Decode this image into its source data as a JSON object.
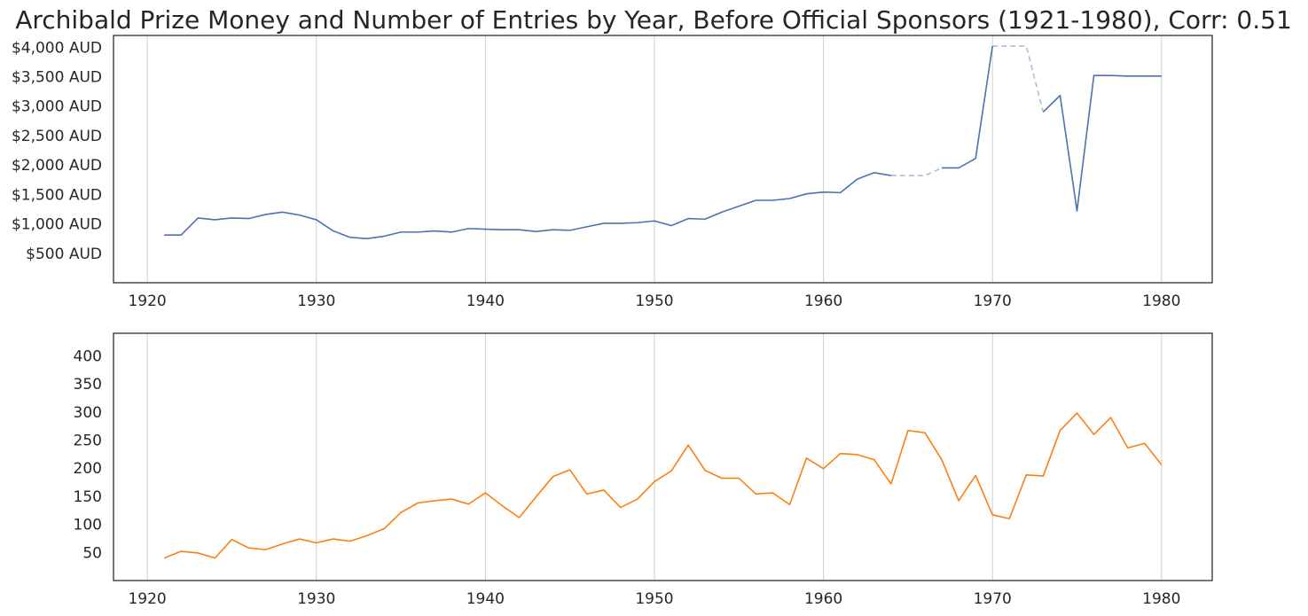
{
  "chart_data": {
    "title": "Archibald Prize Money and Number of Entries by Year,   Before Official Sponsors (1921-1980), Corr: 0.51",
    "panels": [
      {
        "type": "line",
        "xlabel": "",
        "ylabel": "",
        "xlim": [
          1918,
          1983
        ],
        "ylim": [
          0,
          4200
        ],
        "x_ticks": [
          1920,
          1930,
          1940,
          1950,
          1960,
          1970,
          1980
        ],
        "x_tick_labels": [
          "1920",
          "1930",
          "1940",
          "1950",
          "1960",
          "1970",
          "1980"
        ],
        "y_ticks": [
          500,
          1000,
          1500,
          2000,
          2500,
          3000,
          3500,
          4000
        ],
        "y_tick_labels": [
          "$500 AUD",
          "$1,000 AUD",
          "$1,500 AUD",
          "$2,000 AUD",
          "$2,500 AUD",
          "$3,000 AUD",
          "$3,500 AUD",
          "$4,000 AUD"
        ],
        "grid": "vertical",
        "series": [
          {
            "color": "#4c72b0",
            "gap_fill_color": "#a6bfdd",
            "x": [
              1921,
              1922,
              1923,
              1924,
              1925,
              1926,
              1927,
              1928,
              1929,
              1930,
              1931,
              1932,
              1933,
              1934,
              1935,
              1936,
              1937,
              1938,
              1939,
              1940,
              1941,
              1942,
              1943,
              1944,
              1945,
              1946,
              1947,
              1948,
              1949,
              1950,
              1951,
              1952,
              1953,
              1954,
              1955,
              1956,
              1957,
              1958,
              1959,
              1960,
              1961,
              1962,
              1963,
              1964,
              1965,
              1966,
              1967,
              1968,
              1969,
              1970,
              1971,
              1972,
              1973,
              1974,
              1975,
              1976,
              1977,
              1978,
              1979,
              1980
            ],
            "values": [
              810,
              810,
              1100,
              1070,
              1100,
              1090,
              1160,
              1200,
              1150,
              1070,
              880,
              770,
              750,
              790,
              860,
              860,
              880,
              860,
              920,
              910,
              900,
              900,
              870,
              900,
              890,
              950,
              1010,
              1010,
              1020,
              1050,
              970,
              1090,
              1080,
              1200,
              1300,
              1400,
              1400,
              1430,
              1510,
              1540,
              1530,
              1760,
              1870,
              1820,
              null,
              null,
              1950,
              1950,
              2110,
              4020,
              null,
              null,
              2900,
              3180,
              1220,
              3520,
              3520,
              3510,
              3510,
              3510
            ]
          }
        ]
      },
      {
        "type": "line",
        "xlabel": "",
        "ylabel": "",
        "xlim": [
          1918,
          1983
        ],
        "ylim": [
          0,
          440
        ],
        "x_ticks": [
          1920,
          1930,
          1940,
          1950,
          1960,
          1970,
          1980
        ],
        "x_tick_labels": [
          "1920",
          "1930",
          "1940",
          "1950",
          "1960",
          "1970",
          "1980"
        ],
        "y_ticks": [
          50,
          100,
          150,
          200,
          250,
          300,
          350,
          400
        ],
        "y_tick_labels": [
          "50",
          "100",
          "150",
          "200",
          "250",
          "300",
          "350",
          "400"
        ],
        "grid": "vertical",
        "series": [
          {
            "color": "#ff7f0e",
            "x": [
              1921,
              1922,
              1923,
              1924,
              1925,
              1926,
              1927,
              1928,
              1929,
              1930,
              1931,
              1932,
              1933,
              1934,
              1935,
              1936,
              1937,
              1938,
              1939,
              1940,
              1941,
              1942,
              1943,
              1944,
              1945,
              1946,
              1947,
              1948,
              1949,
              1950,
              1951,
              1952,
              1953,
              1954,
              1955,
              1956,
              1957,
              1958,
              1959,
              1960,
              1961,
              1962,
              1963,
              1964,
              1965,
              1966,
              1967,
              1968,
              1969,
              1970,
              1971,
              1972,
              1973,
              1974,
              1975,
              1976,
              1977,
              1978,
              1979,
              1980
            ],
            "values": [
              40,
              52,
              49,
              40,
              73,
              58,
              55,
              65,
              74,
              67,
              74,
              70,
              80,
              92,
              121,
              138,
              142,
              145,
              136,
              156,
              133,
              112,
              149,
              185,
              197,
              154,
              161,
              130,
              145,
              176,
              195,
              241,
              196,
              182,
              182,
              154,
              156,
              135,
              218,
              199,
              226,
              224,
              215,
              172,
              267,
              263,
              215,
              142,
              187,
              117,
              110,
              188,
              186,
              267,
              298,
              260,
              290,
              236,
              244,
              206
            ]
          }
        ]
      }
    ]
  }
}
